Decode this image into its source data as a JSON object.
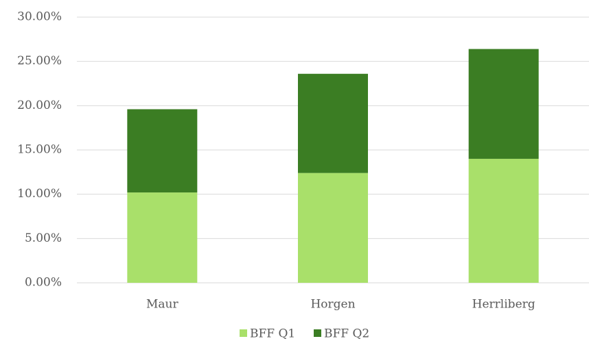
{
  "chart_data": {
    "type": "stacked_bar",
    "categories": [
      "Maur",
      "Horgen",
      "Herrliberg"
    ],
    "series": [
      {
        "name": "BFF Q1",
        "color": "#a9e06a",
        "values": [
          10.2,
          12.4,
          14.0
        ]
      },
      {
        "name": "BFF Q2",
        "color": "#3b7d23",
        "values": [
          9.4,
          11.2,
          12.4
        ]
      }
    ],
    "ylim": [
      0,
      30
    ],
    "yticks": [
      {
        "value": 0,
        "label": "0.00%"
      },
      {
        "value": 5,
        "label": "5.00%"
      },
      {
        "value": 10,
        "label": "10.00%"
      },
      {
        "value": 15,
        "label": "15.00%"
      },
      {
        "value": 20,
        "label": "20.00%"
      },
      {
        "value": 25,
        "label": "25.00%"
      },
      {
        "value": 30,
        "label": "30.00%"
      }
    ],
    "grid": true,
    "legend": "bottom"
  }
}
